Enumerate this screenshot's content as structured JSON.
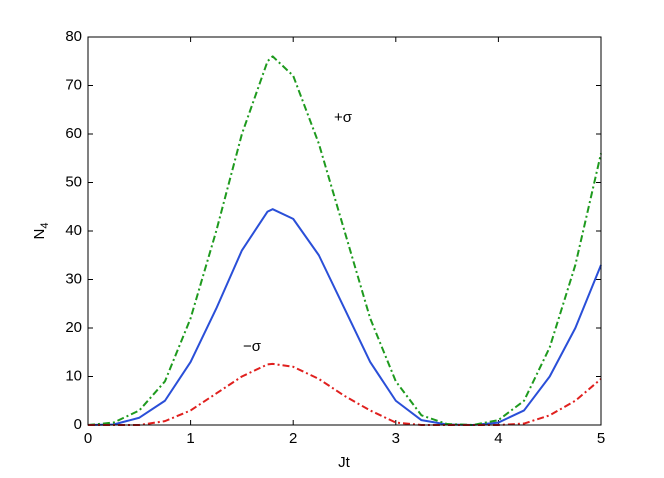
{
  "chart_data": {
    "type": "line",
    "xlabel": "Jt",
    "ylabel": [
      "N",
      "4"
    ],
    "x": [
      0,
      0.25,
      0.5,
      0.75,
      1.0,
      1.25,
      1.5,
      1.75,
      1.8,
      2.0,
      2.25,
      2.5,
      2.75,
      3.0,
      3.25,
      3.5,
      3.75,
      4.0,
      4.25,
      4.5,
      4.75,
      5.0
    ],
    "series": [
      {
        "color": "#2a4fd8",
        "dash": "solid",
        "values": [
          0,
          0.1,
          1.5,
          5,
          13,
          24,
          36,
          44,
          44.5,
          42.5,
          35,
          24,
          13,
          5,
          1,
          0.1,
          0,
          0.5,
          3,
          10,
          20,
          33
        ]
      },
      {
        "color": "#1e9a1e",
        "dash": "dashdot",
        "values": [
          0,
          0.5,
          3,
          9,
          22,
          40,
          60,
          75,
          76,
          72,
          58,
          40,
          22,
          9,
          2,
          0.2,
          0,
          1,
          5,
          16,
          33,
          56
        ]
      },
      {
        "color": "#e0201e",
        "dash": "dashdot",
        "values": [
          0,
          0,
          0,
          0.8,
          3,
          6.5,
          10,
          12.5,
          12.6,
          12,
          9.5,
          6,
          3,
          0.5,
          0,
          0,
          0,
          0,
          0.3,
          2,
          5,
          9.5
        ]
      }
    ],
    "annotations": [
      "+σ",
      "−σ"
    ],
    "xlim": [
      0,
      5
    ],
    "xticks": [
      0,
      1,
      2,
      3,
      4,
      5
    ],
    "ylim": [
      0,
      80
    ],
    "yticks": [
      0,
      10,
      20,
      30,
      40,
      50,
      60,
      70,
      80
    ],
    "grid": false
  }
}
